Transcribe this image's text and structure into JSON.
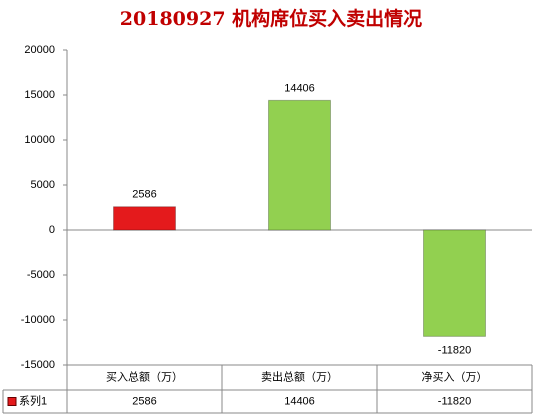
{
  "chart_data": {
    "type": "bar",
    "title": "20180927 机构席位买入卖出情况",
    "categories": [
      "买入总额（万）",
      "卖出总额（万）",
      "净买入（万）"
    ],
    "series": [
      {
        "name": "系列1",
        "color": "#e41a1c",
        "point_colors": [
          "#e41a1c",
          "#92d050",
          "#92d050"
        ],
        "values": [
          2586,
          14406,
          -11820
        ]
      }
    ],
    "ylim": [
      -15000,
      20000
    ],
    "yticks": [
      -15000,
      -10000,
      -5000,
      0,
      5000,
      10000,
      15000,
      20000
    ],
    "grid": false,
    "data_table": true
  }
}
